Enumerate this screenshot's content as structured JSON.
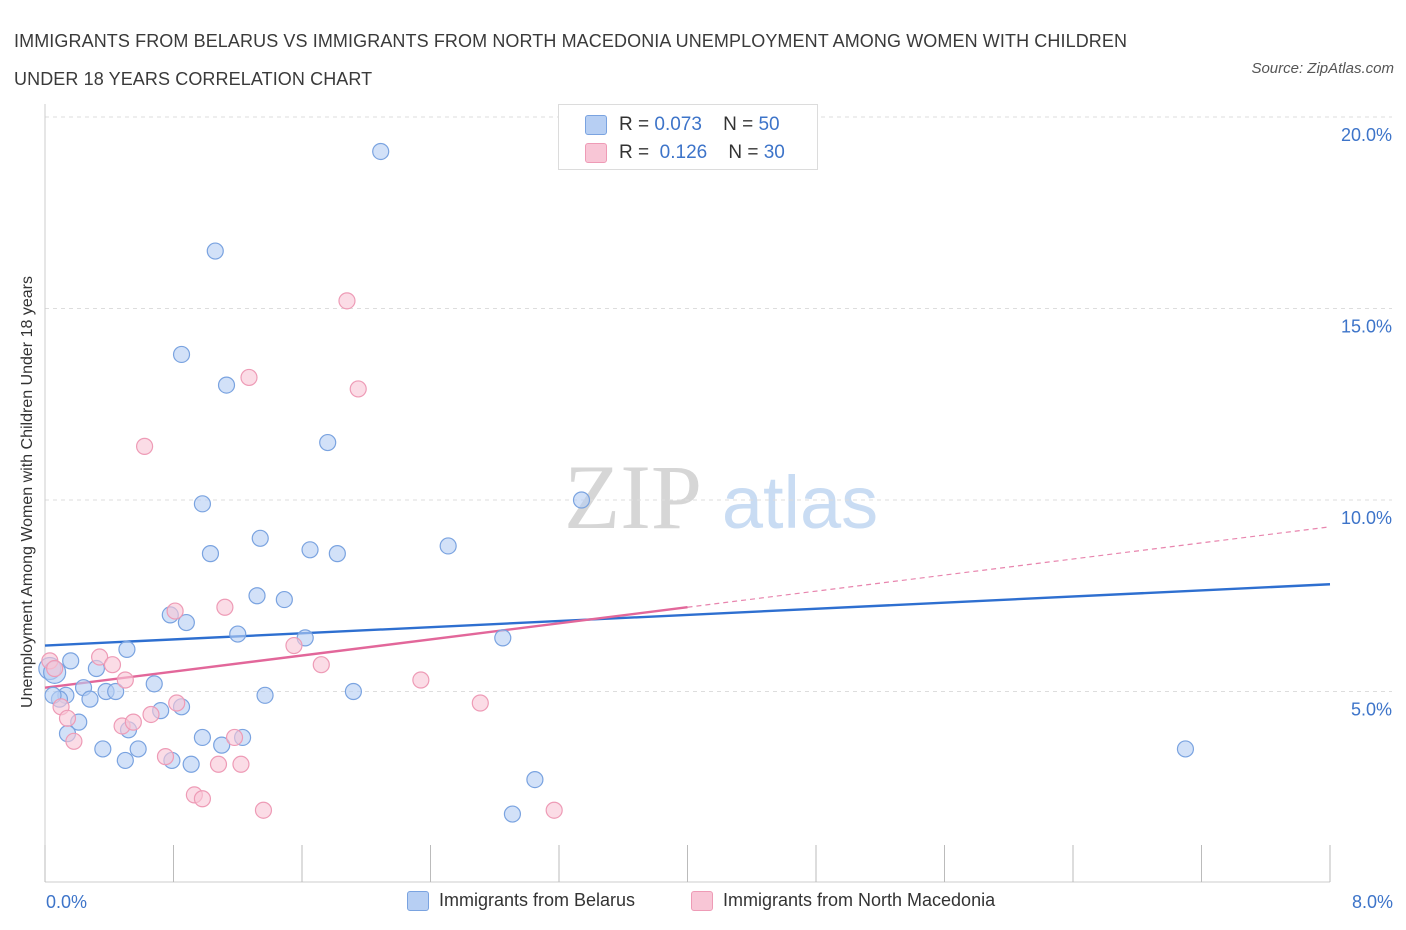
{
  "title": "IMMIGRANTS FROM BELARUS VS IMMIGRANTS FROM NORTH MACEDONIA UNEMPLOYMENT AMONG WOMEN WITH CHILDREN UNDER 18 YEARS CORRELATION CHART",
  "source": "Source: ZipAtlas.com",
  "watermark": {
    "zip": "ZIP",
    "atlas": "atlas"
  },
  "legend_top": {
    "rows": [
      {
        "r_label": "R =",
        "r_value": "0.073",
        "n_label": "N =",
        "n_value": "50"
      },
      {
        "r_label": "R =",
        "r_value": "0.126",
        "n_label": "N =",
        "n_value": "30"
      }
    ]
  },
  "legend_bottom": [
    "Immigrants from Belarus",
    "Immigrants from North Macedonia"
  ],
  "colors": {
    "belarus_fill": "#b7cff3",
    "belarus_stroke": "#7aa3e0",
    "belarus_line": "#2e6fd0",
    "macedonia_fill": "#f8c6d6",
    "macedonia_stroke": "#ee9bb6",
    "macedonia_line": "#e2679a",
    "tick_label": "#3d74c9",
    "grid": "#dddddd"
  },
  "chart_data": {
    "type": "scatter",
    "title": "IMMIGRANTS FROM BELARUS VS IMMIGRANTS FROM NORTH MACEDONIA UNEMPLOYMENT AMONG WOMEN WITH CHILDREN UNDER 18 YEARS CORRELATION CHART",
    "xlabel": "",
    "ylabel": "Unemployment Among Women with Children Under 18 years",
    "xlim": [
      0,
      8
    ],
    "ylim": [
      0,
      20
    ],
    "x_tick_labels": [
      "0.0%",
      "8.0%"
    ],
    "y_ticks": [
      5,
      10,
      15,
      20
    ],
    "y_tick_labels": [
      "5.0%",
      "10.0%",
      "15.0%",
      "20.0%"
    ],
    "grid": true,
    "legend_position": "top-center",
    "series": [
      {
        "name": "Immigrants from Belarus",
        "R": 0.073,
        "N": 50,
        "trend": {
          "x": [
            0.0,
            8.0
          ],
          "y": [
            6.2,
            7.8
          ]
        },
        "points": [
          {
            "x": 0.03,
            "y": 5.6
          },
          {
            "x": 0.06,
            "y": 5.5
          },
          {
            "x": 0.16,
            "y": 5.8
          },
          {
            "x": 0.13,
            "y": 4.9
          },
          {
            "x": 0.09,
            "y": 4.8
          },
          {
            "x": 0.24,
            "y": 5.1
          },
          {
            "x": 0.28,
            "y": 4.8
          },
          {
            "x": 0.32,
            "y": 5.6
          },
          {
            "x": 0.38,
            "y": 5.0
          },
          {
            "x": 0.44,
            "y": 5.0
          },
          {
            "x": 0.21,
            "y": 4.2
          },
          {
            "x": 0.36,
            "y": 3.5
          },
          {
            "x": 0.52,
            "y": 4.0
          },
          {
            "x": 0.58,
            "y": 3.5
          },
          {
            "x": 0.51,
            "y": 6.1
          },
          {
            "x": 0.68,
            "y": 5.2
          },
          {
            "x": 0.72,
            "y": 4.5
          },
          {
            "x": 0.85,
            "y": 4.6
          },
          {
            "x": 0.79,
            "y": 3.2
          },
          {
            "x": 0.91,
            "y": 3.1
          },
          {
            "x": 0.5,
            "y": 3.2
          },
          {
            "x": 0.78,
            "y": 7.0
          },
          {
            "x": 0.88,
            "y": 6.8
          },
          {
            "x": 0.98,
            "y": 3.8
          },
          {
            "x": 1.1,
            "y": 3.6
          },
          {
            "x": 1.2,
            "y": 6.5
          },
          {
            "x": 1.23,
            "y": 3.8
          },
          {
            "x": 1.37,
            "y": 4.9
          },
          {
            "x": 1.32,
            "y": 7.5
          },
          {
            "x": 1.49,
            "y": 7.4
          },
          {
            "x": 1.62,
            "y": 6.4
          },
          {
            "x": 1.92,
            "y": 5.0
          },
          {
            "x": 1.03,
            "y": 8.6
          },
          {
            "x": 1.34,
            "y": 9.0
          },
          {
            "x": 1.65,
            "y": 8.7
          },
          {
            "x": 1.82,
            "y": 8.6
          },
          {
            "x": 0.98,
            "y": 9.9
          },
          {
            "x": 2.51,
            "y": 8.8
          },
          {
            "x": 3.34,
            "y": 10.0
          },
          {
            "x": 1.76,
            "y": 11.5
          },
          {
            "x": 1.13,
            "y": 13.0
          },
          {
            "x": 0.85,
            "y": 13.8
          },
          {
            "x": 1.06,
            "y": 16.5
          },
          {
            "x": 2.09,
            "y": 19.1
          },
          {
            "x": 2.85,
            "y": 6.4
          },
          {
            "x": 2.91,
            "y": 1.8
          },
          {
            "x": 3.05,
            "y": 2.7
          },
          {
            "x": 7.1,
            "y": 3.5
          },
          {
            "x": 0.05,
            "y": 4.9
          },
          {
            "x": 0.14,
            "y": 3.9
          }
        ]
      },
      {
        "name": "Immigrants from North Macedonia",
        "R": 0.126,
        "N": 30,
        "trend": {
          "x": [
            0.0,
            4.0
          ],
          "y": [
            5.1,
            7.2
          ]
        },
        "trend_dashed": {
          "x": [
            4.0,
            8.0
          ],
          "y": [
            7.2,
            9.3
          ]
        },
        "points": [
          {
            "x": 0.03,
            "y": 5.8
          },
          {
            "x": 0.1,
            "y": 4.6
          },
          {
            "x": 0.14,
            "y": 4.3
          },
          {
            "x": 0.18,
            "y": 3.7
          },
          {
            "x": 0.34,
            "y": 5.9
          },
          {
            "x": 0.42,
            "y": 5.7
          },
          {
            "x": 0.5,
            "y": 5.3
          },
          {
            "x": 0.48,
            "y": 4.1
          },
          {
            "x": 0.55,
            "y": 4.2
          },
          {
            "x": 0.66,
            "y": 4.4
          },
          {
            "x": 0.75,
            "y": 3.3
          },
          {
            "x": 0.82,
            "y": 4.7
          },
          {
            "x": 0.93,
            "y": 2.3
          },
          {
            "x": 0.98,
            "y": 2.2
          },
          {
            "x": 1.08,
            "y": 3.1
          },
          {
            "x": 1.12,
            "y": 7.2
          },
          {
            "x": 1.18,
            "y": 3.8
          },
          {
            "x": 1.36,
            "y": 1.9
          },
          {
            "x": 1.55,
            "y": 6.2
          },
          {
            "x": 1.72,
            "y": 5.7
          },
          {
            "x": 2.34,
            "y": 5.3
          },
          {
            "x": 2.71,
            "y": 4.7
          },
          {
            "x": 3.17,
            "y": 1.9
          },
          {
            "x": 0.62,
            "y": 11.4
          },
          {
            "x": 1.27,
            "y": 13.2
          },
          {
            "x": 1.95,
            "y": 12.9
          },
          {
            "x": 1.88,
            "y": 15.2
          },
          {
            "x": 0.81,
            "y": 7.1
          },
          {
            "x": 0.06,
            "y": 5.6
          },
          {
            "x": 1.22,
            "y": 3.1
          }
        ]
      }
    ]
  }
}
